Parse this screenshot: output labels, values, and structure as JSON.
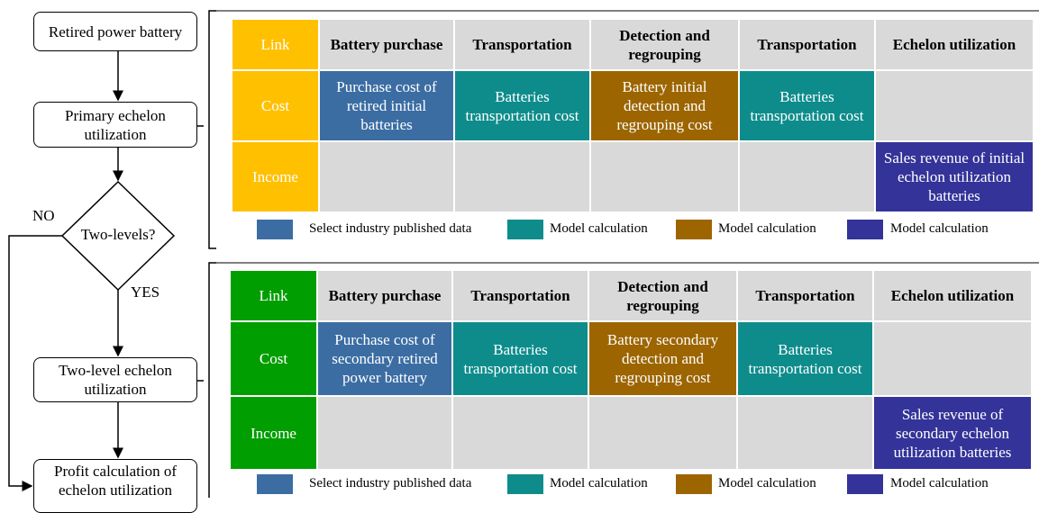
{
  "flowchart": {
    "nodes": [
      "Retired power battery",
      "Primary echelon utilization",
      "Two-levels?",
      "Two-level echelon utilization",
      "Profit calculation of echelon utilization"
    ],
    "no_label": "NO",
    "yes_label": "YES"
  },
  "tables": [
    {
      "header": [
        "Link",
        "Battery purchase",
        "Transportation",
        "Detection and regrouping",
        "Transportation",
        "Echelon utilization"
      ],
      "cost": {
        "label": "Cost",
        "cells": [
          "Purchase cost of retired initial batteries",
          "Batteries transportation cost",
          "Battery initial detection and regrouping cost",
          "Batteries transportation cost"
        ]
      },
      "income": {
        "label": "Income",
        "cells": [
          "Sales revenue of initial echelon utilization batteries"
        ]
      },
      "legend": [
        "Select industry published data",
        "Model calculation",
        "Model calculation",
        "Model calculation"
      ]
    },
    {
      "header": [
        "Link",
        "Battery purchase",
        "Transportation",
        "Detection and regrouping",
        "Transportation",
        "Echelon utilization"
      ],
      "cost": {
        "label": "Cost",
        "cells": [
          "Purchase cost of secondary retired power battery",
          "Batteries transportation cost",
          "Battery secondary detection and regrouping cost",
          "Batteries transportation cost"
        ]
      },
      "income": {
        "label": "Income",
        "cells": [
          "Sales revenue of secondary echelon utilization batteries"
        ]
      },
      "legend": [
        "Select industry published data",
        "Model calculation",
        "Model calculation",
        "Model calculation"
      ]
    }
  ]
}
